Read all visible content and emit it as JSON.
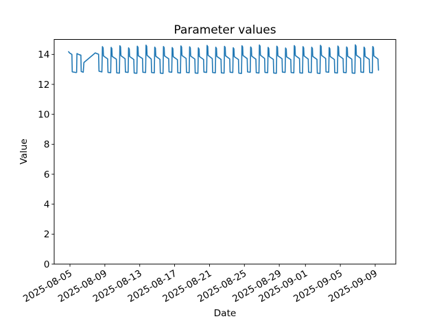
{
  "chart_data": {
    "type": "line",
    "title": "Parameter values",
    "xlabel": "Date",
    "ylabel": "Value",
    "grid": false,
    "legend": null,
    "line_color": "#1f77b4",
    "background_color": "#ffffff",
    "x_unit": "days since 2025-08-05 00:00",
    "xlim": [
      -1.81,
      37.36
    ],
    "ylim": [
      0,
      15
    ],
    "y_ticks": [
      0,
      2,
      4,
      6,
      8,
      10,
      12,
      14
    ],
    "x_ticks": [
      {
        "t": 0,
        "label": "2025-08-05"
      },
      {
        "t": 4,
        "label": "2025-08-09"
      },
      {
        "t": 8,
        "label": "2025-08-13"
      },
      {
        "t": 12,
        "label": "2025-08-17"
      },
      {
        "t": 16,
        "label": "2025-08-21"
      },
      {
        "t": 20,
        "label": "2025-08-25"
      },
      {
        "t": 24,
        "label": "2025-08-29"
      },
      {
        "t": 27,
        "label": "2025-09-01"
      },
      {
        "t": 31,
        "label": "2025-09-05"
      },
      {
        "t": 35,
        "label": "2025-09-09"
      }
    ],
    "series": [
      {
        "name": "Parameter values",
        "points": [
          [
            -0.16,
            14.18
          ],
          [
            -0.05,
            14.1
          ],
          [
            0.22,
            14.0
          ],
          [
            0.26,
            12.84
          ],
          [
            0.7,
            12.79
          ],
          [
            0.76,
            12.8
          ],
          [
            0.8,
            14.06
          ],
          [
            1.02,
            13.99
          ],
          [
            1.25,
            13.95
          ],
          [
            1.29,
            12.86
          ],
          [
            1.52,
            12.81
          ],
          [
            1.6,
            13.46
          ],
          [
            2.9,
            14.1
          ],
          [
            3.28,
            14.01
          ],
          [
            3.33,
            12.88
          ],
          [
            3.66,
            12.83
          ],
          [
            3.72,
            14.52
          ],
          [
            3.8,
            14.44
          ],
          [
            3.84,
            13.9
          ],
          [
            4.32,
            13.7
          ],
          [
            4.36,
            12.8
          ],
          [
            4.67,
            12.78
          ],
          [
            4.72,
            14.47
          ],
          [
            4.8,
            14.39
          ],
          [
            4.84,
            13.87
          ],
          [
            5.32,
            13.68
          ],
          [
            5.36,
            12.77
          ],
          [
            5.67,
            12.75
          ],
          [
            5.72,
            14.58
          ],
          [
            5.8,
            14.5
          ],
          [
            5.84,
            13.92
          ],
          [
            6.32,
            13.71
          ],
          [
            6.36,
            12.82
          ],
          [
            6.67,
            12.8
          ],
          [
            6.72,
            14.44
          ],
          [
            6.8,
            14.36
          ],
          [
            6.84,
            13.86
          ],
          [
            7.32,
            13.66
          ],
          [
            7.36,
            12.76
          ],
          [
            7.67,
            12.74
          ],
          [
            7.72,
            14.55
          ],
          [
            7.8,
            14.47
          ],
          [
            7.84,
            13.91
          ],
          [
            8.32,
            13.72
          ],
          [
            8.36,
            12.81
          ],
          [
            8.67,
            12.79
          ],
          [
            8.72,
            14.62
          ],
          [
            8.8,
            14.54
          ],
          [
            8.84,
            13.94
          ],
          [
            9.32,
            13.69
          ],
          [
            9.36,
            12.79
          ],
          [
            9.67,
            12.77
          ],
          [
            9.72,
            14.49
          ],
          [
            9.8,
            14.41
          ],
          [
            9.84,
            13.88
          ],
          [
            10.32,
            13.67
          ],
          [
            10.36,
            12.75
          ],
          [
            10.67,
            12.73
          ],
          [
            10.72,
            14.53
          ],
          [
            10.8,
            14.45
          ],
          [
            10.84,
            13.9
          ],
          [
            11.32,
            13.71
          ],
          [
            11.36,
            12.83
          ],
          [
            11.67,
            12.81
          ],
          [
            11.72,
            14.46
          ],
          [
            11.8,
            14.38
          ],
          [
            11.84,
            13.85
          ],
          [
            12.32,
            13.65
          ],
          [
            12.36,
            12.78
          ],
          [
            12.67,
            12.76
          ],
          [
            12.72,
            14.57
          ],
          [
            12.8,
            14.49
          ],
          [
            12.84,
            13.93
          ],
          [
            13.32,
            13.73
          ],
          [
            13.36,
            12.8
          ],
          [
            13.67,
            12.78
          ],
          [
            13.72,
            14.51
          ],
          [
            13.8,
            14.43
          ],
          [
            13.84,
            13.89
          ],
          [
            14.32,
            13.69
          ],
          [
            14.36,
            12.76
          ],
          [
            14.67,
            12.74
          ],
          [
            14.72,
            14.44
          ],
          [
            14.8,
            14.36
          ],
          [
            14.84,
            13.86
          ],
          [
            15.32,
            13.66
          ],
          [
            15.36,
            12.82
          ],
          [
            15.67,
            12.8
          ],
          [
            15.72,
            14.6
          ],
          [
            15.8,
            14.52
          ],
          [
            15.84,
            13.94
          ],
          [
            16.32,
            13.72
          ],
          [
            16.36,
            12.79
          ],
          [
            16.67,
            12.77
          ],
          [
            16.72,
            14.48
          ],
          [
            16.8,
            14.4
          ],
          [
            16.84,
            13.87
          ],
          [
            17.32,
            13.67
          ],
          [
            17.36,
            12.77
          ],
          [
            17.67,
            12.75
          ],
          [
            17.72,
            14.54
          ],
          [
            17.8,
            14.46
          ],
          [
            17.84,
            13.91
          ],
          [
            18.32,
            13.7
          ],
          [
            18.36,
            12.81
          ],
          [
            18.67,
            12.79
          ],
          [
            18.72,
            14.45
          ],
          [
            18.8,
            14.37
          ],
          [
            18.84,
            13.85
          ],
          [
            19.32,
            13.66
          ],
          [
            19.36,
            12.75
          ],
          [
            19.67,
            12.73
          ],
          [
            19.72,
            14.58
          ],
          [
            19.8,
            14.5
          ],
          [
            19.84,
            13.93
          ],
          [
            20.32,
            13.72
          ],
          [
            20.36,
            12.83
          ],
          [
            20.67,
            12.81
          ],
          [
            20.72,
            14.5
          ],
          [
            20.8,
            14.42
          ],
          [
            20.84,
            13.89
          ],
          [
            21.32,
            13.68
          ],
          [
            21.36,
            12.78
          ],
          [
            21.67,
            12.76
          ],
          [
            21.72,
            14.63
          ],
          [
            21.8,
            14.55
          ],
          [
            21.84,
            13.95
          ],
          [
            22.32,
            13.73
          ],
          [
            22.36,
            12.8
          ],
          [
            22.67,
            12.78
          ],
          [
            22.72,
            14.47
          ],
          [
            22.8,
            14.39
          ],
          [
            22.84,
            13.86
          ],
          [
            23.32,
            13.67
          ],
          [
            23.36,
            12.76
          ],
          [
            23.67,
            12.74
          ],
          [
            23.72,
            14.55
          ],
          [
            23.8,
            14.47
          ],
          [
            23.84,
            13.91
          ],
          [
            24.32,
            13.71
          ],
          [
            24.36,
            12.82
          ],
          [
            24.67,
            12.8
          ],
          [
            24.72,
            14.43
          ],
          [
            24.8,
            14.35
          ],
          [
            24.84,
            13.84
          ],
          [
            25.32,
            13.65
          ],
          [
            25.36,
            12.79
          ],
          [
            25.67,
            12.77
          ],
          [
            25.72,
            14.59
          ],
          [
            25.8,
            14.51
          ],
          [
            25.84,
            13.93
          ],
          [
            26.32,
            13.72
          ],
          [
            26.36,
            12.77
          ],
          [
            26.67,
            12.75
          ],
          [
            26.72,
            14.52
          ],
          [
            26.8,
            14.44
          ],
          [
            26.84,
            13.9
          ],
          [
            27.32,
            13.69
          ],
          [
            27.36,
            12.81
          ],
          [
            27.67,
            12.79
          ],
          [
            27.72,
            14.48
          ],
          [
            27.8,
            14.4
          ],
          [
            27.84,
            13.87
          ],
          [
            28.32,
            13.67
          ],
          [
            28.36,
            12.75
          ],
          [
            28.67,
            12.73
          ],
          [
            28.72,
            14.61
          ],
          [
            28.8,
            14.53
          ],
          [
            28.84,
            13.94
          ],
          [
            29.32,
            13.73
          ],
          [
            29.36,
            12.83
          ],
          [
            29.67,
            12.81
          ],
          [
            29.72,
            14.46
          ],
          [
            29.8,
            14.38
          ],
          [
            29.84,
            13.86
          ],
          [
            30.32,
            13.66
          ],
          [
            30.36,
            12.78
          ],
          [
            30.67,
            12.76
          ],
          [
            30.72,
            14.56
          ],
          [
            30.8,
            14.48
          ],
          [
            30.84,
            13.92
          ],
          [
            31.32,
            13.71
          ],
          [
            31.36,
            12.8
          ],
          [
            31.67,
            12.78
          ],
          [
            31.72,
            14.5
          ],
          [
            31.8,
            14.42
          ],
          [
            31.84,
            13.88
          ],
          [
            32.32,
            13.68
          ],
          [
            32.36,
            12.76
          ],
          [
            32.67,
            12.74
          ],
          [
            32.72,
            14.64
          ],
          [
            32.8,
            14.56
          ],
          [
            32.84,
            13.95
          ],
          [
            33.32,
            13.74
          ],
          [
            33.36,
            12.82
          ],
          [
            33.67,
            12.8
          ],
          [
            33.72,
            14.49
          ],
          [
            33.8,
            14.41
          ],
          [
            33.84,
            13.87
          ],
          [
            34.32,
            13.67
          ],
          [
            34.36,
            12.79
          ],
          [
            34.67,
            12.77
          ],
          [
            34.72,
            14.53
          ],
          [
            34.8,
            14.45
          ],
          [
            34.84,
            13.9
          ],
          [
            35.32,
            13.69
          ],
          [
            35.37,
            12.95
          ]
        ]
      }
    ]
  }
}
